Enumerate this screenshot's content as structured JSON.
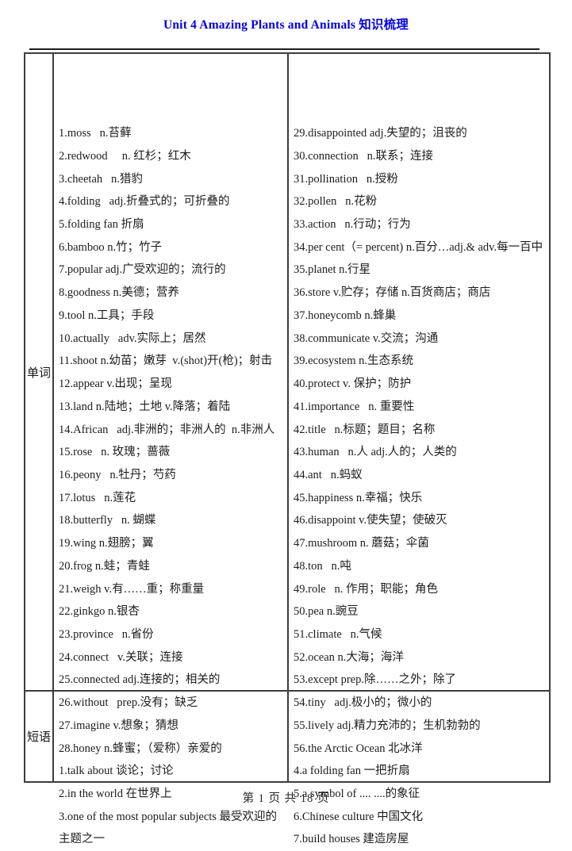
{
  "title": "Unit 4 Amazing Plants and Animals  知识梳理",
  "footer": "第 1 页 共 18 页",
  "colors": {
    "title_blue": "#0000e8",
    "text": "#1c1c1c",
    "border": "#3d3d3d"
  },
  "sections": {
    "words": {
      "label": "单词",
      "left": [
        "1.moss   n.苔藓",
        "2.redwood     n. 红杉；红木",
        "3.cheetah   n.猎豹",
        "4.folding   adj.折叠式的；可折叠的",
        "5.folding fan 折扇",
        "6.bamboo n.竹；竹子",
        "7.popular adj.广受欢迎的；流行的",
        "8.goodness n.美德；营养",
        "9.tool n.工具；手段",
        "10.actually   adv.实际上；居然",
        "11.shoot n.幼苗；嫩芽  v.(shot)开(枪)；射击",
        "12.appear v.出现；呈现",
        "13.land n.陆地；土地 v.降落；着陆",
        "14.African   adj.非洲的；非洲人的  n.非洲人",
        "15.rose   n. 玫瑰；蔷薇",
        "16.peony   n.牡丹；芍药",
        "17.lotus   n.莲花",
        "18.butterfly   n. 蝴蝶",
        "19.wing n.翅膀；翼",
        "20.frog n.蛙；青蛙",
        "21.weigh v.有……重；称重量",
        "22.ginkgo n.银杏",
        "23.province   n.省份",
        "24.connect   v.关联；连接",
        "25.connected adj.连接的；相关的",
        "26.without   prep.没有；缺乏",
        "27.imagine v.想象；猜想",
        "28.honey n.蜂蜜；（爱称）亲爱的"
      ],
      "right": [
        "29.disappointed adj.失望的；沮丧的",
        "30.connection   n.联系；连接",
        "31.pollination   n.授粉",
        "32.pollen   n.花粉",
        "33.action   n.行动；行为",
        "34.per cent（= percent) n.百分…adj.& adv.每一百中",
        "35.planet n.行星",
        "36.store v.贮存；存储 n.百货商店；商店",
        "37.honeycomb n.蜂巢",
        "38.communicate v.交流；沟通",
        "39.ecosystem n.生态系统",
        "40.protect v. 保护；防护",
        "41.importance   n. 重要性",
        "42.title   n.标题；题目；名称",
        "43.human   n.人 adj.人的；人类的",
        "44.ant   n.蚂蚁",
        "45.happiness n.幸福；快乐",
        "46.disappoint v.使失望；使破灭",
        "47.mushroom n. 蘑菇；伞菌",
        "48.ton   n.吨",
        "49.role   n. 作用；职能；角色",
        "50.pea n.豌豆",
        "51.climate   n.气候",
        "52.ocean n.大海；海洋",
        "53.except prep.除……之外；除了",
        "54.tiny   adj.极小的；微小的",
        "55.lively adj.精力充沛的；生机勃勃的",
        "56.the Arctic Ocean 北冰洋"
      ]
    },
    "phrases": {
      "label": "短语",
      "left": [
        "1.talk about 谈论；讨论",
        "2.in the world 在世界上",
        "3.one of the most popular subjects 最受欢迎的主题之一"
      ],
      "right": [
        "4.a folding fan 一把折扇",
        "5.a symbol of .... ....的象征",
        "6.Chinese culture 中国文化",
        "7.build houses 建造房屋"
      ]
    }
  }
}
